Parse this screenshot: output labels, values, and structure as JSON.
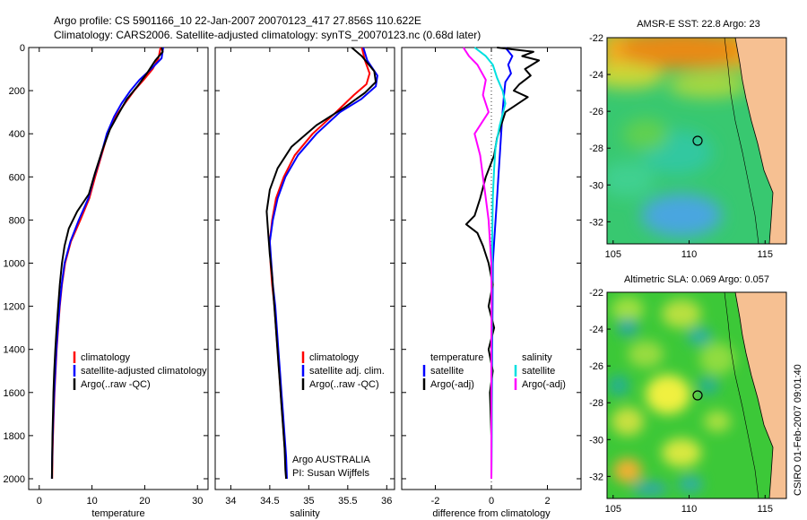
{
  "header": {
    "line1": "Argo profile: CS 5901166_10 22-Jan-2007 20070123_417 27.856S 110.622E",
    "line2": "Climatology: CARS2006. Satellite-adjusted climatology: synTS_20070123.nc (0.68d later)"
  },
  "credit": {
    "line1": "Argo AUSTRALIA",
    "line2": "PI: Susan Wijffels"
  },
  "side_stamp": "CSIRO 01-Feb-2007 09:01:40",
  "colors": {
    "climatology": "#ff0000",
    "satellite": "#0000ff",
    "argo": "#000000",
    "sal_satellite": "#00e0e0",
    "sal_argo": "#ff00ff"
  },
  "chart_data": [
    {
      "type": "line",
      "xlabel": "temperature",
      "ylabel": "",
      "xlim": [
        -2,
        32
      ],
      "ylim": [
        2050,
        0
      ],
      "xticks": [
        0,
        10,
        20,
        30
      ],
      "yticks": [
        0,
        200,
        400,
        600,
        800,
        1000,
        1200,
        1400,
        1600,
        1800,
        2000
      ],
      "legend": [
        "climatology",
        "satellite-adjusted climatology",
        "Argo(..raw -QC)"
      ],
      "legend_position": "lower-center",
      "series": [
        {
          "name": "climatology",
          "color": "#ff0000",
          "points": [
            [
              23.0,
              0
            ],
            [
              22.6,
              50
            ],
            [
              21.5,
              100
            ],
            [
              19.8,
              150
            ],
            [
              18.0,
              200
            ],
            [
              16.2,
              260
            ],
            [
              14.5,
              320
            ],
            [
              13.0,
              400
            ],
            [
              11.8,
              500
            ],
            [
              10.6,
              600
            ],
            [
              9.5,
              700
            ],
            [
              7.8,
              800
            ],
            [
              6.0,
              900
            ],
            [
              4.9,
              1000
            ],
            [
              4.3,
              1100
            ],
            [
              3.9,
              1200
            ],
            [
              3.6,
              1300
            ],
            [
              3.3,
              1400
            ],
            [
              3.1,
              1500
            ],
            [
              2.9,
              1600
            ],
            [
              2.75,
              1700
            ],
            [
              2.6,
              1800
            ],
            [
              2.5,
              1900
            ],
            [
              2.45,
              2000
            ]
          ]
        },
        {
          "name": "satellite-adjusted climatology",
          "color": "#0000ff",
          "points": [
            [
              23.5,
              0
            ],
            [
              23.2,
              50
            ],
            [
              21.2,
              100
            ],
            [
              19.0,
              150
            ],
            [
              17.3,
              200
            ],
            [
              15.6,
              260
            ],
            [
              14.2,
              320
            ],
            [
              12.8,
              400
            ],
            [
              11.7,
              500
            ],
            [
              10.4,
              600
            ],
            [
              9.3,
              700
            ],
            [
              7.5,
              800
            ],
            [
              5.9,
              900
            ],
            [
              4.8,
              1000
            ],
            [
              4.25,
              1100
            ],
            [
              3.85,
              1200
            ],
            [
              3.55,
              1300
            ],
            [
              3.25,
              1400
            ],
            [
              3.05,
              1500
            ],
            [
              2.85,
              1600
            ],
            [
              2.7,
              1700
            ],
            [
              2.55,
              1800
            ],
            [
              2.45,
              1900
            ],
            [
              2.4,
              2000
            ]
          ]
        },
        {
          "name": "Argo(..raw -QC)",
          "color": "#000000",
          "points": [
            [
              23.2,
              0
            ],
            [
              23.4,
              20
            ],
            [
              22.0,
              60
            ],
            [
              20.4,
              120
            ],
            [
              18.6,
              180
            ],
            [
              16.6,
              240
            ],
            [
              15.2,
              300
            ],
            [
              13.4,
              380
            ],
            [
              11.9,
              480
            ],
            [
              10.6,
              580
            ],
            [
              9.4,
              680
            ],
            [
              7.2,
              760
            ],
            [
              5.6,
              840
            ],
            [
              4.8,
              920
            ],
            [
              4.3,
              1000
            ],
            [
              3.9,
              1100
            ],
            [
              3.6,
              1200
            ],
            [
              3.3,
              1300
            ],
            [
              3.05,
              1400
            ],
            [
              2.85,
              1500
            ],
            [
              2.7,
              1600
            ],
            [
              2.6,
              1700
            ],
            [
              2.5,
              1800
            ],
            [
              2.45,
              1900
            ],
            [
              2.4,
              2000
            ]
          ]
        }
      ]
    },
    {
      "type": "line",
      "xlabel": "salinity",
      "ylabel": "",
      "xlim": [
        33.8,
        36.1
      ],
      "ylim": [
        2050,
        0
      ],
      "xticks": [
        34,
        34.5,
        35,
        35.5,
        36
      ],
      "legend": [
        "climatology",
        "satellite adj. clim.",
        "Argo(..raw -QC)"
      ],
      "legend_position": "lower-center",
      "series": [
        {
          "name": "climatology",
          "color": "#ff0000",
          "points": [
            [
              35.68,
              0
            ],
            [
              35.72,
              60
            ],
            [
              35.78,
              120
            ],
            [
              35.74,
              170
            ],
            [
              35.58,
              220
            ],
            [
              35.35,
              300
            ],
            [
              35.05,
              400
            ],
            [
              34.82,
              500
            ],
            [
              34.68,
              600
            ],
            [
              34.58,
              700
            ],
            [
              34.53,
              800
            ],
            [
              34.5,
              900
            ],
            [
              34.51,
              1000
            ],
            [
              34.53,
              1100
            ],
            [
              34.56,
              1200
            ],
            [
              34.58,
              1300
            ],
            [
              34.6,
              1400
            ],
            [
              34.62,
              1500
            ],
            [
              34.64,
              1600
            ],
            [
              34.66,
              1700
            ],
            [
              34.68,
              1800
            ],
            [
              34.7,
              1900
            ],
            [
              34.71,
              2000
            ]
          ]
        },
        {
          "name": "satellite adj. clim.",
          "color": "#0000ff",
          "points": [
            [
              35.7,
              0
            ],
            [
              35.75,
              60
            ],
            [
              35.88,
              130
            ],
            [
              35.86,
              180
            ],
            [
              35.67,
              240
            ],
            [
              35.4,
              300
            ],
            [
              35.1,
              400
            ],
            [
              34.86,
              500
            ],
            [
              34.7,
              600
            ],
            [
              34.6,
              700
            ],
            [
              34.54,
              800
            ],
            [
              34.5,
              900
            ],
            [
              34.52,
              1000
            ],
            [
              34.54,
              1100
            ],
            [
              34.57,
              1200
            ],
            [
              34.59,
              1300
            ],
            [
              34.61,
              1400
            ],
            [
              34.63,
              1500
            ],
            [
              34.65,
              1600
            ],
            [
              34.67,
              1700
            ],
            [
              34.69,
              1800
            ],
            [
              34.71,
              1900
            ],
            [
              34.72,
              2000
            ]
          ]
        },
        {
          "name": "Argo(..raw -QC)",
          "color": "#000000",
          "points": [
            [
              35.55,
              0
            ],
            [
              35.68,
              40
            ],
            [
              35.84,
              110
            ],
            [
              35.86,
              160
            ],
            [
              35.72,
              210
            ],
            [
              35.45,
              280
            ],
            [
              35.1,
              360
            ],
            [
              34.78,
              460
            ],
            [
              34.6,
              560
            ],
            [
              34.5,
              660
            ],
            [
              34.46,
              760
            ],
            [
              34.48,
              860
            ],
            [
              34.5,
              960
            ],
            [
              34.53,
              1060
            ],
            [
              34.55,
              1160
            ],
            [
              34.57,
              1260
            ],
            [
              34.59,
              1360
            ],
            [
              34.61,
              1460
            ],
            [
              34.63,
              1560
            ],
            [
              34.65,
              1660
            ],
            [
              34.67,
              1760
            ],
            [
              34.69,
              1860
            ],
            [
              34.7,
              1960
            ],
            [
              34.71,
              2000
            ]
          ]
        }
      ]
    },
    {
      "type": "line",
      "xlabel": "difference from climatology",
      "ylabel": "",
      "xlim": [
        -3.2,
        3.2
      ],
      "ylim": [
        2050,
        0
      ],
      "xticks": [
        -2,
        0,
        2
      ],
      "legend_groups": [
        {
          "title": "temperature",
          "items": [
            "satellite",
            "Argo(-adj)"
          ]
        },
        {
          "title": "salinity",
          "items": [
            "satellite",
            "Argo(-adj)"
          ]
        }
      ],
      "series": [
        {
          "name": "temperature satellite",
          "color": "#0000ff",
          "points": [
            [
              0.5,
              0
            ],
            [
              0.75,
              40
            ],
            [
              0.6,
              80
            ],
            [
              0.7,
              120
            ],
            [
              0.5,
              160
            ],
            [
              0.45,
              220
            ],
            [
              0.4,
              300
            ],
            [
              0.35,
              400
            ],
            [
              0.3,
              500
            ],
            [
              0.25,
              600
            ],
            [
              0.2,
              700
            ],
            [
              0.15,
              800
            ],
            [
              0.1,
              900
            ],
            [
              0.05,
              1000
            ],
            [
              0.04,
              1200
            ],
            [
              0.03,
              1400
            ],
            [
              0.02,
              1600
            ],
            [
              0.01,
              1800
            ],
            [
              0.0,
              2000
            ]
          ]
        },
        {
          "name": "temperature Argo(-adj)",
          "color": "#000000",
          "points": [
            [
              0.2,
              0
            ],
            [
              1.5,
              20
            ],
            [
              1.1,
              40
            ],
            [
              1.7,
              60
            ],
            [
              1.2,
              100
            ],
            [
              1.4,
              130
            ],
            [
              1.0,
              170
            ],
            [
              0.8,
              200
            ],
            [
              1.3,
              230
            ],
            [
              0.5,
              300
            ],
            [
              0.2,
              420
            ],
            [
              0.1,
              500
            ],
            [
              -0.2,
              600
            ],
            [
              -0.4,
              700
            ],
            [
              -0.6,
              780
            ],
            [
              -0.9,
              820
            ],
            [
              -0.5,
              860
            ],
            [
              -0.3,
              920
            ],
            [
              -0.1,
              1000
            ],
            [
              0.05,
              1100
            ],
            [
              -0.1,
              1200
            ],
            [
              0.1,
              1300
            ],
            [
              -0.1,
              1400
            ],
            [
              0.05,
              1500
            ],
            [
              -0.05,
              1600
            ],
            [
              0.0,
              1800
            ],
            [
              0.0,
              2000
            ]
          ]
        },
        {
          "name": "salinity satellite",
          "color": "#00e0e0",
          "points": [
            [
              -0.6,
              0
            ],
            [
              -0.2,
              40
            ],
            [
              0.05,
              80
            ],
            [
              0.2,
              140
            ],
            [
              0.4,
              200
            ],
            [
              0.5,
              260
            ],
            [
              0.3,
              360
            ],
            [
              0.15,
              460
            ],
            [
              0.1,
              560
            ],
            [
              0.05,
              700
            ],
            [
              0.03,
              900
            ],
            [
              0.02,
              1100
            ],
            [
              0.02,
              1300
            ],
            [
              0.01,
              1500
            ],
            [
              0.01,
              1700
            ],
            [
              0.0,
              2000
            ]
          ]
        },
        {
          "name": "salinity Argo(-adj)",
          "color": "#ff00ff",
          "points": [
            [
              -1.0,
              0
            ],
            [
              -0.8,
              40
            ],
            [
              -0.5,
              80
            ],
            [
              -0.2,
              150
            ],
            [
              -0.3,
              220
            ],
            [
              -0.1,
              300
            ],
            [
              -0.6,
              400
            ],
            [
              -0.4,
              500
            ],
            [
              -0.3,
              600
            ],
            [
              -0.2,
              700
            ],
            [
              -0.1,
              800
            ],
            [
              -0.05,
              900
            ],
            [
              0.0,
              1000
            ],
            [
              0.01,
              1200
            ],
            [
              0.0,
              1400
            ],
            [
              0.0,
              1600
            ],
            [
              0.0,
              1800
            ],
            [
              0.0,
              2000
            ]
          ]
        }
      ]
    },
    {
      "type": "heatmap",
      "title": "AMSR-E SST: 22.8  Argo: 23",
      "xlim": [
        104.6,
        116.4
      ],
      "ylim": [
        -33.2,
        -22
      ],
      "xticks": [
        105,
        110,
        115
      ],
      "yticks": [
        -22,
        -24,
        -26,
        -28,
        -30,
        -32
      ],
      "float_position": [
        110.622,
        -27.856
      ]
    },
    {
      "type": "heatmap",
      "title": "Altimetric SLA: 0.069  Argo: 0.057",
      "xlim": [
        104.6,
        116.4
      ],
      "ylim": [
        -33.2,
        -22
      ],
      "xticks": [
        105,
        110,
        115
      ],
      "yticks": [
        -22,
        -24,
        -26,
        -28,
        -30,
        -32
      ],
      "float_position": [
        110.622,
        -27.856
      ]
    }
  ]
}
